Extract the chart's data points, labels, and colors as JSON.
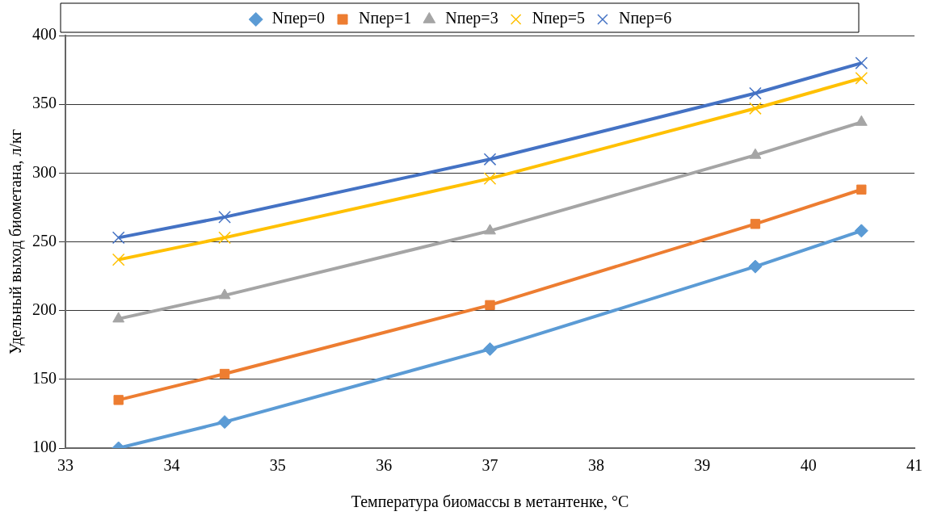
{
  "chart_data": {
    "type": "line",
    "xlabel": "Температура биомассы в метантенке, °C",
    "ylabel": "Удельный выход биометана, л/кг",
    "x": [
      33.5,
      34.5,
      37,
      39.5,
      40.5
    ],
    "xlim": [
      33,
      41
    ],
    "xticks": [
      33,
      34,
      35,
      36,
      37,
      38,
      39,
      40,
      41
    ],
    "ylim": [
      100,
      400
    ],
    "yticks": [
      100,
      150,
      200,
      250,
      300,
      350,
      400
    ],
    "grid": "y",
    "legend": "top",
    "series": [
      {
        "name": "Nпер=0",
        "color": "#5b9bd5",
        "marker": "diamond",
        "values": [
          100,
          119,
          172,
          232,
          258
        ]
      },
      {
        "name": "Nпер=1",
        "color": "#ed7d31",
        "marker": "square",
        "values": [
          135,
          154,
          204,
          263,
          288
        ]
      },
      {
        "name": "Nпер=3",
        "color": "#a5a5a5",
        "marker": "triangle",
        "values": [
          194,
          211,
          258,
          313,
          337
        ]
      },
      {
        "name": "Nпер=5",
        "color": "#ffc000",
        "marker": "cross",
        "values": [
          237,
          253,
          296,
          347,
          369
        ]
      },
      {
        "name": "Nпер=6",
        "color": "#4472c4",
        "marker": "cross",
        "values": [
          253,
          268,
          310,
          358,
          380
        ]
      }
    ]
  }
}
